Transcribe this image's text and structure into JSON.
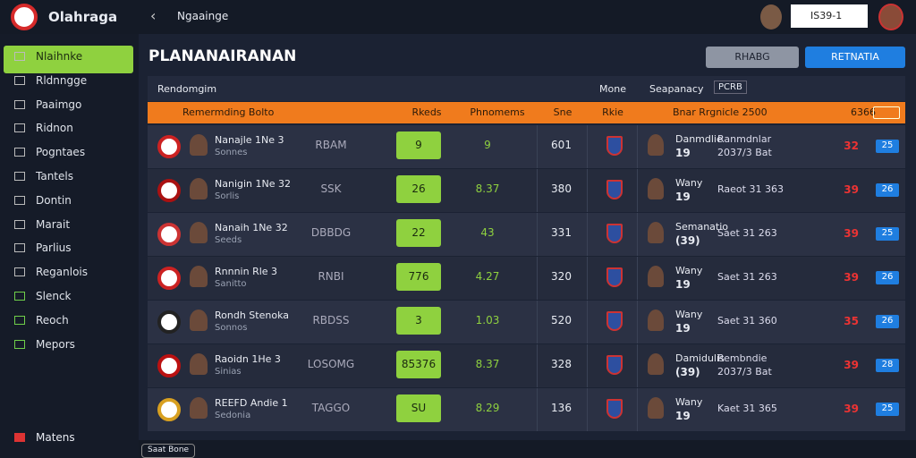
{
  "header": {
    "app_name": "Olahraga",
    "breadcrumb": "Ngaainge",
    "search": "IS39-1"
  },
  "sidebar": {
    "items": [
      "Nlaihnke",
      "Rldnngge",
      "Paaimgo",
      "Ridnon",
      "Pogntaes",
      "Tantels",
      "Dontin",
      "Marait",
      "Parlius",
      "Reganlois",
      "Slenck",
      "Reoch",
      "Mepors"
    ],
    "footer": "Matens"
  },
  "main": {
    "title": "PLANANAIRANAN",
    "buttons": [
      "RHABG",
      "RETNATIA"
    ],
    "footer_chip": "Saat Bone"
  },
  "table": {
    "headers": [
      "Rendomgim",
      "Mone",
      "Seapanacy"
    ],
    "header_badge": "PCRB",
    "highlight": [
      "Remermding Bolto",
      "Rkeds",
      "Phnomems",
      "Sne",
      "Rkie",
      "Bnar Rrgnicle 2500",
      "6366"
    ],
    "rows": [
      {
        "name": "Nanajle 1Ne 3",
        "sub": "Sonnes",
        "code": "RBAM",
        "badge": "9",
        "value": "9",
        "num": "601",
        "right_name": "Danmdlie",
        "right_num": "19",
        "detail": "Ranmdnlar",
        "detail2": "2037/3 Bat",
        "red": "32",
        "blue": "25"
      },
      {
        "name": "Nanigin 1Ne 32",
        "sub": "Sorlis",
        "code": "SSK",
        "badge": "26",
        "value": "8.37",
        "num": "380",
        "right_name": "Wany",
        "right_num": "19",
        "detail": "Raeot 31 363",
        "red": "39",
        "blue": "26"
      },
      {
        "name": "Nanaih 1Ne 32",
        "sub": "Seeds",
        "code": "DBBDG",
        "badge": "22",
        "value": "43",
        "num": "331",
        "right_name": "Semanatio",
        "right_num": "(39)",
        "detail": "Saet 31 263",
        "red": "39",
        "blue": "25"
      },
      {
        "name": "Rnnnin Rle 3",
        "sub": "Sanitto",
        "code": "RNBI",
        "badge": "776",
        "value": "4.27",
        "num": "320",
        "right_name": "Wany",
        "right_num": "19",
        "detail": "Saet 31 263",
        "red": "39",
        "blue": "26"
      },
      {
        "name": "Rondh Stenoka",
        "sub": "Sonnos",
        "code": "RBDSS",
        "badge": "3",
        "value": "1.03",
        "num": "520",
        "right_name": "Wany",
        "right_num": "19",
        "detail": "Saet 31 360",
        "red": "35",
        "blue": "26"
      },
      {
        "name": "Raoidn 1He 3",
        "sub": "Sinias",
        "code": "LOSOMG",
        "badge": "85376",
        "value": "8.37",
        "num": "328",
        "right_name": "Damidulis",
        "right_num": "(39)",
        "detail": "Rembndie",
        "detail2": "2037/3 Bat",
        "red": "39",
        "blue": "28"
      },
      {
        "name": "REEFD Andie 1",
        "sub": "Sedonia",
        "code": "TAGGO",
        "badge": "SU",
        "value": "8.29",
        "num": "136",
        "right_name": "Wany",
        "right_num": "19",
        "detail": "Kaet 31 365",
        "red": "39",
        "blue": "25"
      }
    ]
  }
}
